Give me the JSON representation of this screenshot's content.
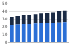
{
  "chart_data": {
    "type": "bar",
    "categories": [
      null,
      null,
      null,
      null,
      null,
      null,
      null,
      null,
      null,
      null
    ],
    "series": [
      {
        "color": "#2b6fd6",
        "values": [
          23,
          23.5,
          24,
          24,
          24.5,
          25,
          25,
          25.5,
          26,
          26.5
        ]
      },
      {
        "color": "#1a2a44",
        "values": [
          10,
          10.5,
          11,
          11.5,
          12,
          12.5,
          13,
          13.5,
          14.5,
          15
        ]
      }
    ],
    "stacked": true,
    "ylim": [
      0,
      50
    ],
    "yticks": [
      0,
      10,
      20,
      30,
      40,
      50
    ],
    "grid": true,
    "tick_labels": "y"
  }
}
